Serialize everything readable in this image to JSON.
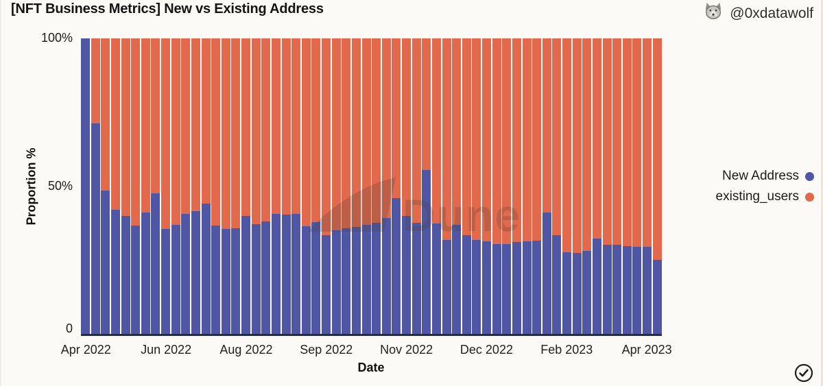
{
  "header": {
    "title": "[NFT Business Metrics] New vs Existing Address",
    "author_handle": "@0xdatawolf"
  },
  "watermark": {
    "text": "Dune"
  },
  "legend": {
    "items": [
      {
        "label": "New Address",
        "color": "#4f56a3"
      },
      {
        "label": "existing_users",
        "color": "#e2694b"
      }
    ]
  },
  "chart_data": {
    "type": "bar",
    "stacked": true,
    "normalized": true,
    "title": "[NFT Business Metrics] New vs Existing Address",
    "xlabel": "Date",
    "ylabel": "Proportion %",
    "ylim": [
      0,
      100
    ],
    "grid": false,
    "legend_position": "right",
    "x_unit": "week",
    "bar_count": 58,
    "y_ticks": [
      {
        "label": "100%",
        "value": 100
      },
      {
        "label": "50%",
        "value": 50
      },
      {
        "label": "0",
        "value": 0
      }
    ],
    "x_ticks": [
      {
        "label": "Apr 2022",
        "bar_index": 1
      },
      {
        "label": "Jun 2022",
        "bar_index": 9
      },
      {
        "label": "Aug 2022",
        "bar_index": 17
      },
      {
        "label": "Sep 2022",
        "bar_index": 25
      },
      {
        "label": "Nov 2022",
        "bar_index": 33
      },
      {
        "label": "Dec 2022",
        "bar_index": 41
      },
      {
        "label": "Feb 2023",
        "bar_index": 49
      },
      {
        "label": "Apr 2023",
        "bar_index": 57
      }
    ],
    "series": [
      {
        "name": "New Address",
        "color": "#4f56a3",
        "unit": "%",
        "values": [
          100,
          71.2,
          48.5,
          42.1,
          40,
          36.6,
          41,
          47.6,
          35.5,
          37,
          40.5,
          41.5,
          44,
          36.7,
          35.6,
          35.7,
          39.8,
          37.2,
          38.1,
          40.5,
          40.4,
          40.6,
          36.5,
          37.8,
          33.5,
          35,
          35.7,
          36.3,
          37,
          37.5,
          39.2,
          46,
          40,
          37.5,
          55.5,
          37.4,
          31.8,
          37,
          33.5,
          31.8,
          31.3,
          30.5,
          30.3,
          31.1,
          31.3,
          31.5,
          41,
          33.3,
          27.7,
          27.3,
          28,
          32.3,
          30.2,
          30.2,
          29.8,
          29.5,
          29.5,
          25
        ]
      },
      {
        "name": "existing_users",
        "color": "#e2694b",
        "unit": "%",
        "values": [
          0,
          28.8,
          51.5,
          57.9,
          60,
          63.4,
          59,
          52.4,
          64.5,
          63,
          59.5,
          58.5,
          56,
          63.3,
          64.4,
          64.3,
          60.2,
          62.8,
          61.9,
          59.5,
          59.6,
          59.4,
          63.5,
          62.2,
          66.5,
          65,
          64.3,
          63.7,
          63,
          62.5,
          60.8,
          54,
          60,
          62.5,
          44.5,
          62.6,
          68.2,
          63,
          66.5,
          68.2,
          68.7,
          69.5,
          69.7,
          68.9,
          68.7,
          68.5,
          59,
          66.7,
          72.3,
          72.7,
          72,
          67.7,
          69.8,
          69.8,
          70.2,
          70.5,
          70.5,
          75
        ]
      }
    ]
  },
  "footer": {
    "verified_icon": "check-circle-icon"
  }
}
